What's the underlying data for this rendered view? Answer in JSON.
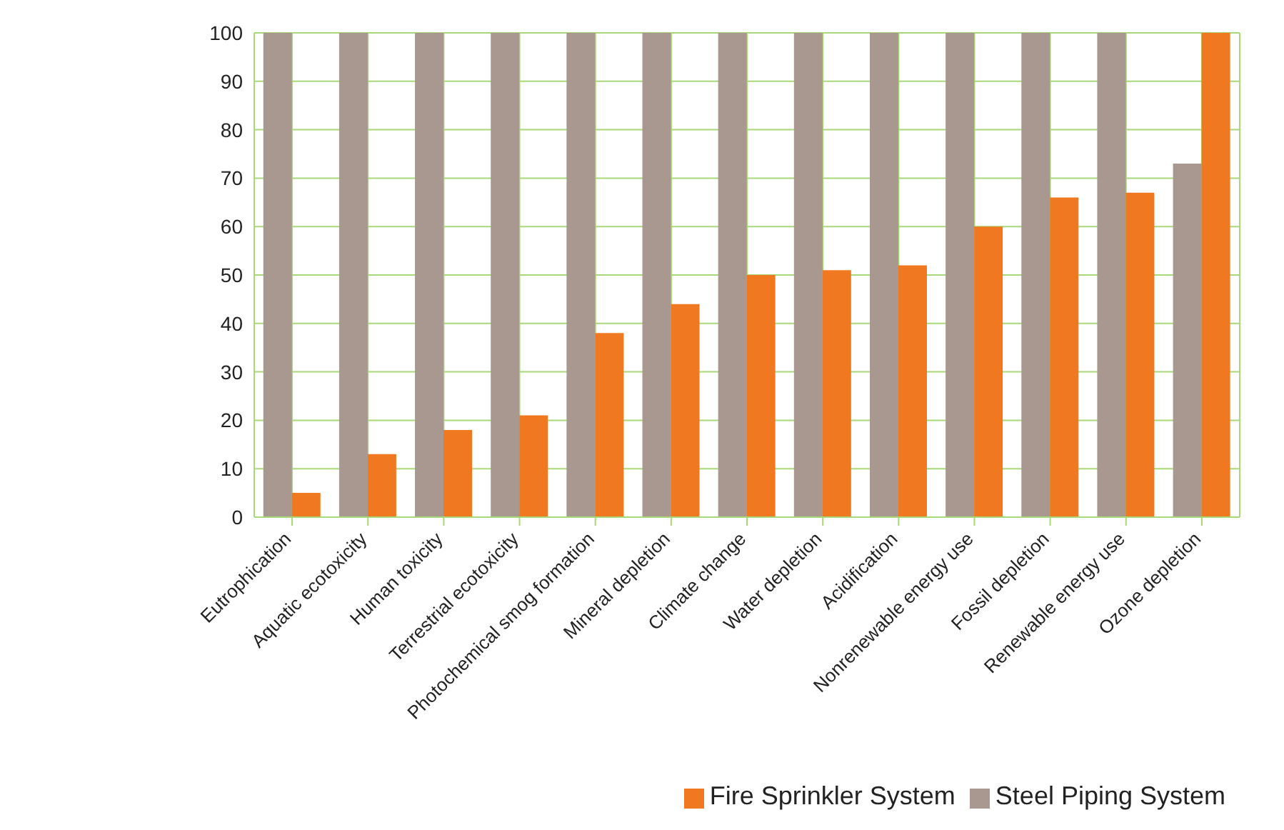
{
  "chart_data": {
    "type": "bar",
    "categories": [
      "Eutrophication",
      "Aquatic ecotoxicity",
      "Human toxicity",
      "Terrestrial ecotoxicity",
      "Photochemical smog formation",
      "Mineral depletion",
      "Climate change",
      "Water depletion",
      "Acidification",
      "Nonrenewable energy use",
      "Fossil depletion",
      "Renewable energy use",
      "Ozone depletion"
    ],
    "series": [
      {
        "name": "Steel Piping System",
        "color": "#a89890",
        "values": [
          100,
          100,
          100,
          100,
          100,
          100,
          100,
          100,
          100,
          100,
          100,
          100,
          73
        ]
      },
      {
        "name": "Fire Sprinkler System",
        "color": "#f07820",
        "values": [
          5,
          13,
          18,
          21,
          38,
          44,
          50,
          51,
          52,
          60,
          66,
          67,
          100
        ]
      }
    ],
    "ylim": [
      0,
      100
    ],
    "yticks": [
      0,
      10,
      20,
      30,
      40,
      50,
      60,
      70,
      80,
      90,
      100
    ],
    "grid": true,
    "legend": "bottom right"
  }
}
